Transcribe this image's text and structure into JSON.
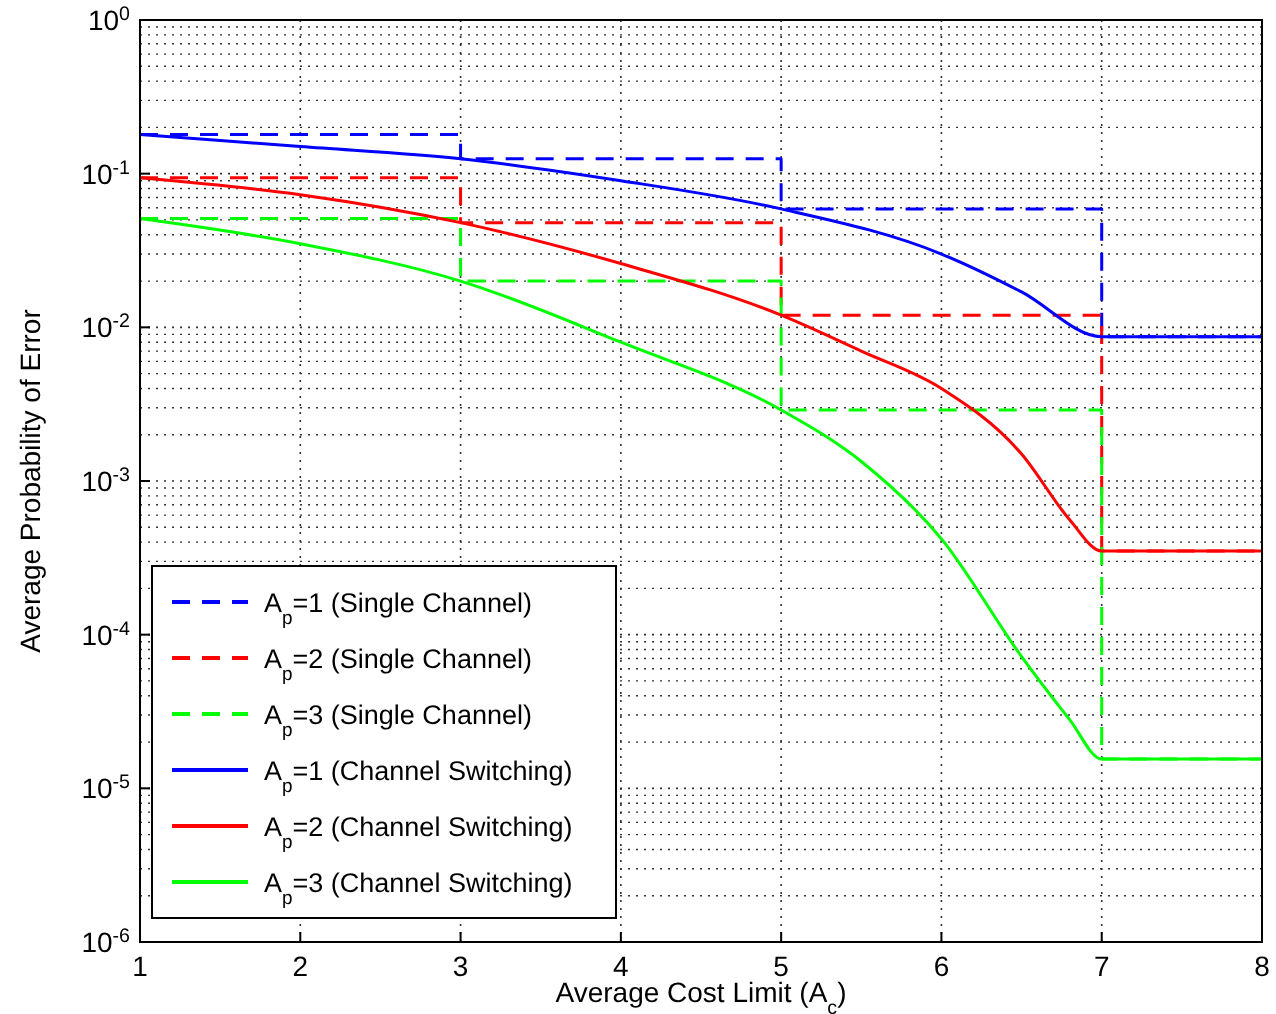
{
  "chart_data": {
    "type": "line",
    "xlabel": "Average Cost Limit (A$_{c}$)",
    "ylabel": "Average Probability of Error",
    "log": "y",
    "grid": true,
    "legend": "bottom left",
    "xlim": [
      1,
      8
    ],
    "xticks": [
      1,
      2,
      3,
      4,
      5,
      6,
      7,
      8
    ],
    "ylim": [
      1e-06,
      1
    ],
    "yticks": [
      {
        "value": 1,
        "label": "10$^{0}$"
      },
      {
        "value": 0.1,
        "label": "10$^{-1}$"
      },
      {
        "value": 0.01,
        "label": "10$^{-2}$"
      },
      {
        "value": 0.001,
        "label": "10$^{-3}$"
      },
      {
        "value": 0.0001,
        "label": "10$^{-4}$"
      },
      {
        "value": 1e-05,
        "label": "10$^{-5}$"
      },
      {
        "value": 1e-06,
        "label": "10$^{-6}$"
      }
    ],
    "series": [
      {
        "name": "A$_{p}$=1 (Single Channel)",
        "type": "step",
        "line_style": "dashed",
        "color": "#0000ff",
        "x": [
          1,
          3,
          3,
          5,
          5,
          7,
          7,
          8
        ],
        "values": [
          0.18,
          0.18,
          0.125,
          0.125,
          0.059,
          0.059,
          0.0087,
          0.0087
        ]
      },
      {
        "name": "A$_{p}$=2 (Single Channel)",
        "type": "step",
        "line_style": "dashed",
        "color": "#ff0000",
        "x": [
          1,
          3,
          3,
          5,
          5,
          7,
          7,
          8
        ],
        "values": [
          0.094,
          0.094,
          0.048,
          0.048,
          0.012,
          0.012,
          0.00035,
          0.00035
        ]
      },
      {
        "name": "A$_{p}$=3 (Single Channel)",
        "type": "step",
        "line_style": "dashed",
        "color": "#00ff00",
        "x": [
          1,
          3,
          3,
          5,
          5,
          7,
          7,
          8
        ],
        "values": [
          0.051,
          0.051,
          0.02,
          0.02,
          0.0029,
          0.0029,
          1.55e-05,
          1.55e-05
        ]
      },
      {
        "name": "A$_{p}$=1 (Channel Switching)",
        "type": "line",
        "line_style": "solid",
        "color": "#0000ff",
        "x": [
          1,
          2,
          3,
          4,
          5,
          6,
          6.5,
          7,
          8
        ],
        "values": [
          0.18,
          0.15,
          0.125,
          0.09,
          0.059,
          0.03,
          0.017,
          0.0087,
          0.0087
        ]
      },
      {
        "name": "A$_{p}$=2 (Channel Switching)",
        "type": "line",
        "line_style": "solid",
        "color": "#ff0000",
        "x": [
          1,
          2,
          3,
          4,
          5,
          5.5,
          6,
          6.5,
          6.8,
          7,
          8
        ],
        "values": [
          0.094,
          0.073,
          0.048,
          0.026,
          0.012,
          0.007,
          0.004,
          0.0015,
          0.00056,
          0.00035,
          0.00035
        ]
      },
      {
        "name": "A$_{p}$=3 (Channel Switching)",
        "type": "line",
        "line_style": "solid",
        "color": "#00ff00",
        "x": [
          1,
          2,
          3,
          4,
          5,
          5.5,
          6,
          6.5,
          6.8,
          7,
          8
        ],
        "values": [
          0.051,
          0.035,
          0.02,
          0.008,
          0.0029,
          0.00134,
          0.00042,
          7.2e-05,
          2.8e-05,
          1.55e-05,
          1.55e-05
        ]
      }
    ]
  }
}
